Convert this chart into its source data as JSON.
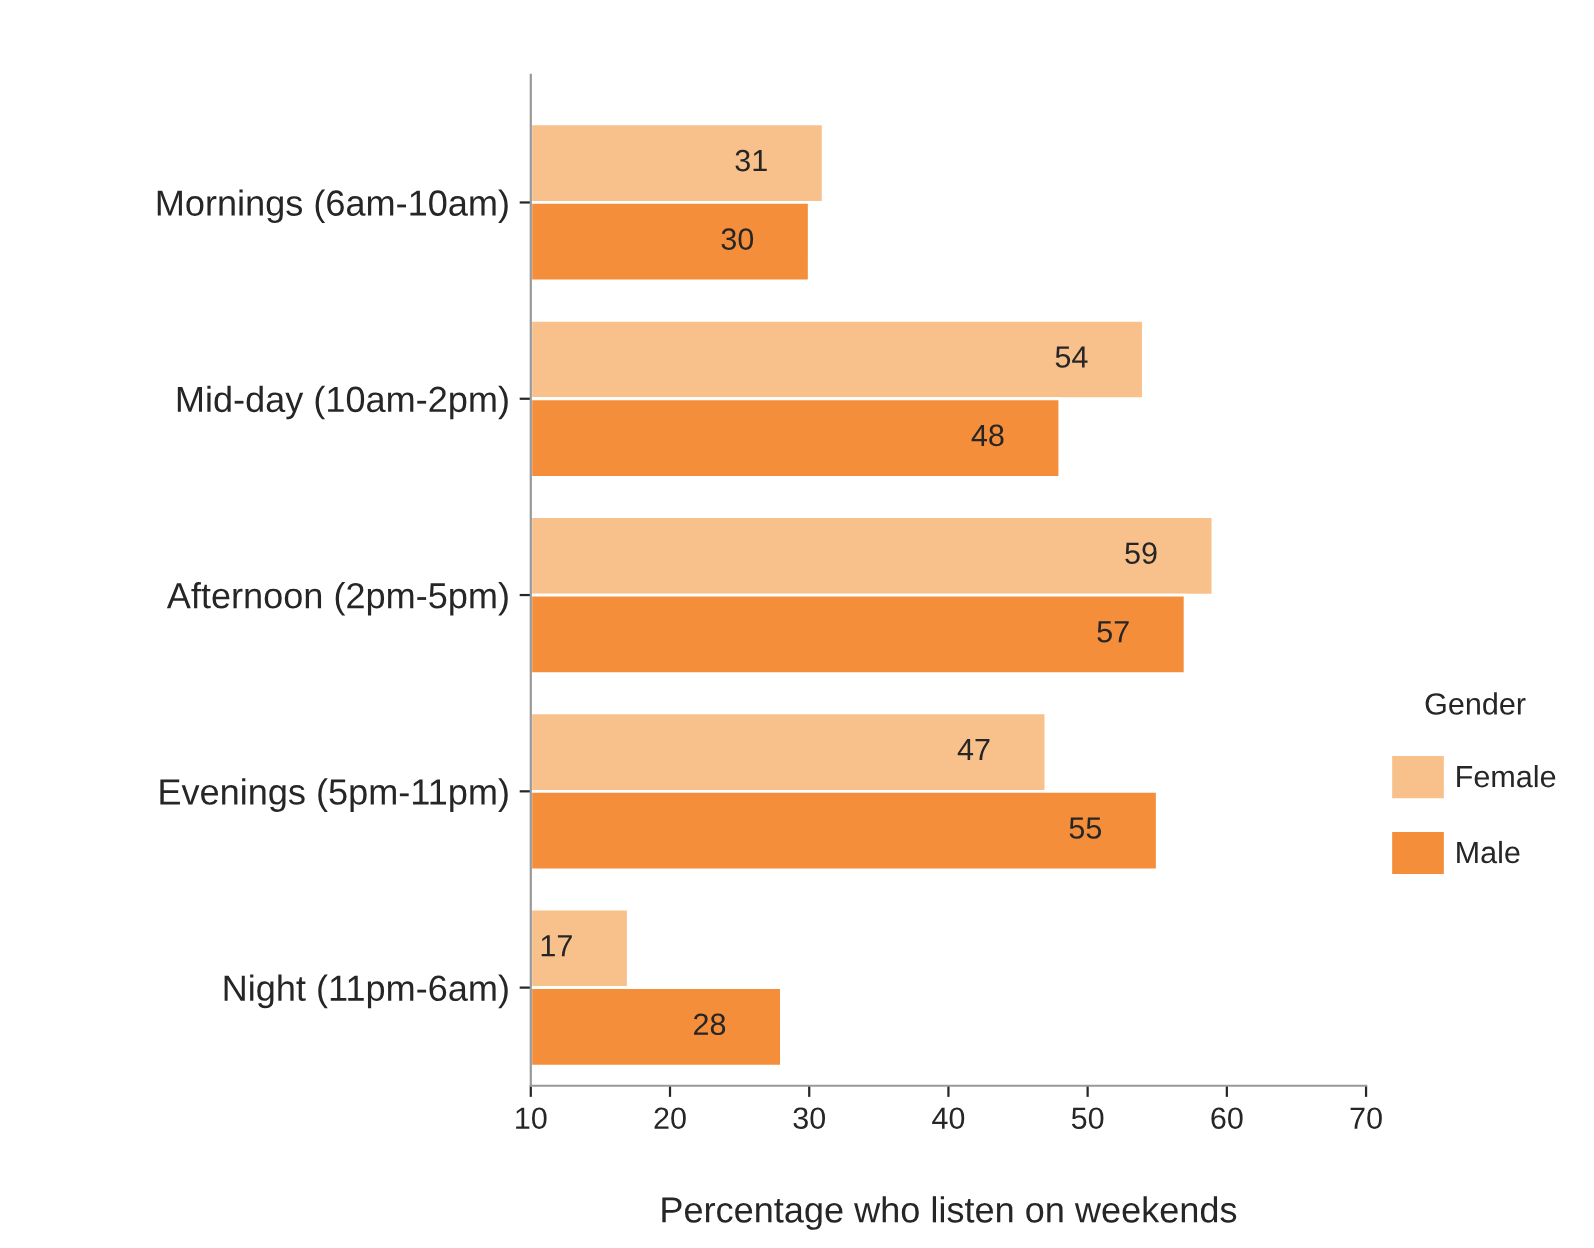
{
  "chart_data": {
    "type": "bar",
    "orientation": "horizontal",
    "xlabel": "Percentage who listen on weekends",
    "legend_title": "Gender",
    "legend": "right",
    "categories": [
      "Mornings (6am-10am)",
      "Mid-day (10am-2pm)",
      "Afternoon (2pm-5pm)",
      "Evenings (5pm-11pm)",
      "Night (11pm-6am)"
    ],
    "series": [
      {
        "name": "Female",
        "color": "#f8c08a",
        "values": [
          31,
          54,
          59,
          47,
          17
        ]
      },
      {
        "name": "Male",
        "color": "#f48e3a",
        "values": [
          30,
          48,
          57,
          55,
          28
        ]
      }
    ],
    "xlim": [
      10,
      70
    ],
    "xticks": [
      10,
      20,
      30,
      40,
      50,
      60,
      70
    ],
    "data_labels": true,
    "grid": false
  }
}
